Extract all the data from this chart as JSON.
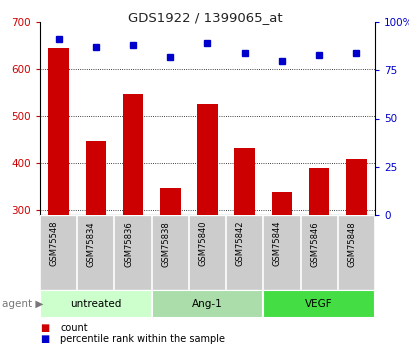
{
  "title": "GDS1922 / 1399065_at",
  "samples": [
    "GSM75548",
    "GSM75834",
    "GSM75836",
    "GSM75838",
    "GSM75840",
    "GSM75842",
    "GSM75844",
    "GSM75846",
    "GSM75848"
  ],
  "counts": [
    645,
    448,
    548,
    348,
    525,
    432,
    338,
    390,
    410
  ],
  "percentile_ranks": [
    91,
    87,
    88,
    82,
    89,
    84,
    80,
    83,
    84
  ],
  "groups": [
    {
      "label": "untreated",
      "indices": [
        0,
        1,
        2
      ],
      "color": "#ccffcc"
    },
    {
      "label": "Ang-1",
      "indices": [
        3,
        4,
        5
      ],
      "color": "#aaddaa"
    },
    {
      "label": "VEGF",
      "indices": [
        6,
        7,
        8
      ],
      "color": "#44dd44"
    }
  ],
  "bar_color": "#cc0000",
  "dot_color": "#0000cc",
  "ylim_left": [
    290,
    700
  ],
  "ylim_right": [
    0,
    100
  ],
  "yticks_left": [
    300,
    400,
    500,
    600,
    700
  ],
  "yticks_right": [
    0,
    25,
    50,
    75,
    100
  ],
  "grid_color": "#000000",
  "tick_label_color_left": "#cc0000",
  "tick_label_color_right": "#0000cc",
  "legend_count_label": "count",
  "legend_pct_label": "percentile rank within the sample",
  "agent_label": "agent",
  "background_color": "#ffffff",
  "plot_bg_color": "#ffffff",
  "label_area_color": "#cccccc",
  "bar_width": 0.55
}
